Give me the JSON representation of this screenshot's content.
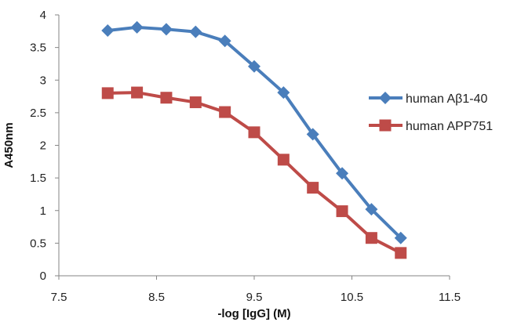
{
  "chart_data": {
    "type": "line",
    "title": "",
    "xlabel": "-log [IgG] (M)",
    "ylabel": "A450nm",
    "xlim": [
      7.5,
      11.5
    ],
    "ylim": [
      0,
      4
    ],
    "xticks": [
      7.5,
      8.5,
      9.5,
      10.5,
      11.5
    ],
    "yticks": [
      0,
      0.5,
      1,
      1.5,
      2,
      2.5,
      3,
      3.5,
      4
    ],
    "x_tick_labels": [
      "7.5",
      "8.5",
      "9.5",
      "10.5",
      "11.5"
    ],
    "y_tick_labels": [
      "0",
      "0.5",
      "1",
      "1.5",
      "2",
      "2.5",
      "3",
      "3.5",
      "4"
    ],
    "grid": false,
    "legend_position": "right",
    "series": [
      {
        "name": "human Aβ1-40",
        "color": "#4a7ebb",
        "marker": "diamond",
        "x": [
          8.0,
          8.3,
          8.6,
          8.9,
          9.2,
          9.5,
          9.8,
          10.1,
          10.4,
          10.7,
          11.0
        ],
        "values": [
          3.76,
          3.81,
          3.78,
          3.74,
          3.6,
          3.21,
          2.81,
          2.17,
          1.57,
          1.02,
          0.58
        ]
      },
      {
        "name": "human APP751",
        "color": "#be4b48",
        "marker": "square",
        "x": [
          8.0,
          8.3,
          8.6,
          8.9,
          9.2,
          9.5,
          9.8,
          10.1,
          10.4,
          10.7,
          11.0
        ],
        "values": [
          2.8,
          2.81,
          2.73,
          2.66,
          2.51,
          2.2,
          1.78,
          1.35,
          0.99,
          0.58,
          0.35
        ]
      }
    ]
  }
}
